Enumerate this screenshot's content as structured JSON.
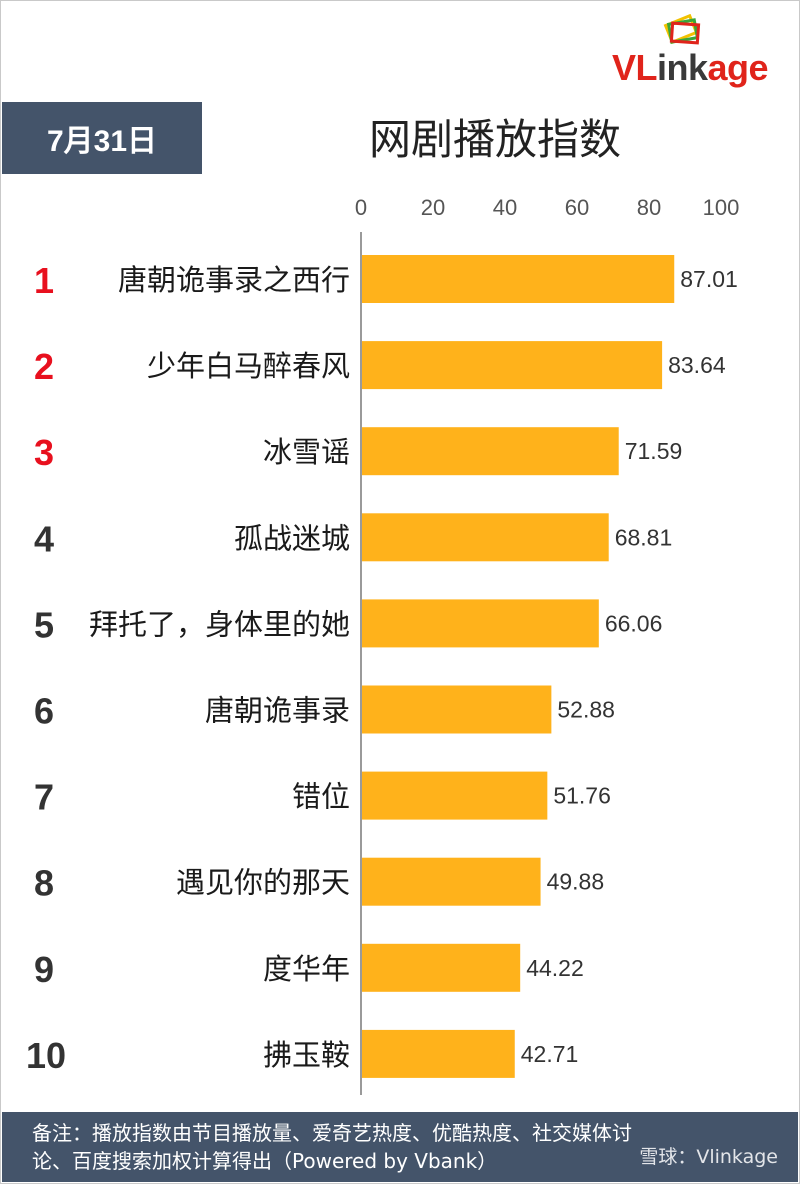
{
  "logo": {
    "part1": "VL",
    "part2": "ink",
    "part3": "age"
  },
  "date_label": "7月31日",
  "chart_data": {
    "type": "bar",
    "orientation": "horizontal",
    "title": "网剧播放指数",
    "xlim": [
      0,
      100
    ],
    "ticks": [
      0,
      20,
      40,
      60,
      80,
      100
    ],
    "grid": false,
    "ranks": [
      "1",
      "2",
      "3",
      "4",
      "5",
      "6",
      "7",
      "8",
      "9",
      "10"
    ],
    "categories": [
      "唐朝诡事录之西行",
      "少年白马醉春风",
      "冰雪谣",
      "孤战迷城",
      "拜托了，身体里的她",
      "唐朝诡事录",
      "错位",
      "遇见你的那天",
      "度华年",
      "拂玉鞍"
    ],
    "values": [
      87.01,
      83.64,
      71.59,
      68.81,
      66.06,
      52.88,
      51.76,
      49.88,
      44.22,
      42.71
    ],
    "value_labels": [
      "87.01",
      "83.64",
      "71.59",
      "68.81",
      "66.06",
      "52.88",
      "51.76",
      "49.88",
      "44.22",
      "42.71"
    ],
    "colors": {
      "bar": "#ffb21b",
      "top_rank": "#e8101e",
      "rank": "#333333"
    }
  },
  "note": {
    "line1": "备注：播放指数由节目播放量、爱奇艺热度、优酷热度、社交媒体讨",
    "line2": "论、百度搜索加权计算得出（Powered by Vbank）"
  },
  "watermark": "雪球：Vlinkage"
}
